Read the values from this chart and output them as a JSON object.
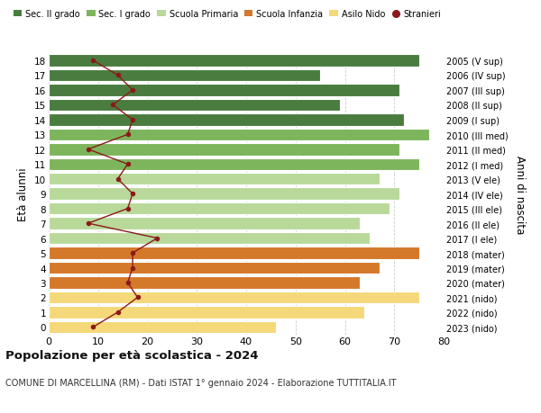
{
  "ages": [
    18,
    17,
    16,
    15,
    14,
    13,
    12,
    11,
    10,
    9,
    8,
    7,
    6,
    5,
    4,
    3,
    2,
    1,
    0
  ],
  "right_labels": [
    "2005 (V sup)",
    "2006 (IV sup)",
    "2007 (III sup)",
    "2008 (II sup)",
    "2009 (I sup)",
    "2010 (III med)",
    "2011 (II med)",
    "2012 (I med)",
    "2013 (V ele)",
    "2014 (IV ele)",
    "2015 (III ele)",
    "2016 (II ele)",
    "2017 (I ele)",
    "2018 (mater)",
    "2019 (mater)",
    "2020 (mater)",
    "2021 (nido)",
    "2022 (nido)",
    "2023 (nido)"
  ],
  "bar_values": [
    75,
    55,
    71,
    59,
    72,
    77,
    71,
    75,
    67,
    71,
    69,
    63,
    65,
    75,
    67,
    63,
    75,
    64,
    46
  ],
  "bar_colors": [
    "#4a7c3f",
    "#4a7c3f",
    "#4a7c3f",
    "#4a7c3f",
    "#4a7c3f",
    "#7db55c",
    "#7db55c",
    "#7db55c",
    "#b8d99a",
    "#b8d99a",
    "#b8d99a",
    "#b8d99a",
    "#b8d99a",
    "#d4782a",
    "#d4782a",
    "#d4782a",
    "#f5d87a",
    "#f5d87a",
    "#f5d87a"
  ],
  "stranieri_values": [
    9,
    14,
    17,
    13,
    17,
    16,
    8,
    16,
    14,
    17,
    16,
    8,
    22,
    17,
    17,
    16,
    18,
    14,
    9
  ],
  "legend_labels": [
    "Sec. II grado",
    "Sec. I grado",
    "Scuola Primaria",
    "Scuola Infanzia",
    "Asilo Nido",
    "Stranieri"
  ],
  "legend_colors": [
    "#4a7c3f",
    "#7db55c",
    "#b8d99a",
    "#d4782a",
    "#f5d87a",
    "#8b0000"
  ],
  "ylabel": "Età alunni",
  "ylabel_right": "Anni di nascita",
  "title": "Popolazione per età scolastica - 2024",
  "subtitle": "COMUNE DI MARCELLINA (RM) - Dati ISTAT 1° gennaio 2024 - Elaborazione TUTTITALIA.IT",
  "xlim": [
    0,
    80
  ],
  "bg_color": "#ffffff",
  "grid_color": "#cccccc"
}
